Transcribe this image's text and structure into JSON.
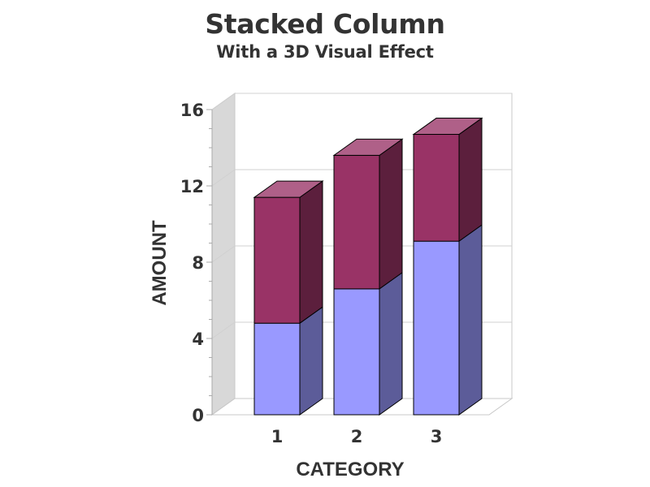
{
  "chart_data": {
    "type": "bar",
    "title": "Stacked Column",
    "subtitle": "With a 3D Visual Effect",
    "xlabel": "CATEGORY",
    "ylabel": "AMOUNT",
    "categories": [
      "1",
      "2",
      "3"
    ],
    "stacked": true,
    "three_d": true,
    "ylim": [
      0,
      16
    ],
    "yticks": [
      0,
      4,
      8,
      12,
      16
    ],
    "grid": true,
    "series": [
      {
        "values": [
          4.8,
          6.6,
          9.1
        ],
        "color": "#9999FF"
      },
      {
        "values": [
          6.6,
          7.0,
          5.6
        ],
        "color": "#993366"
      }
    ]
  }
}
